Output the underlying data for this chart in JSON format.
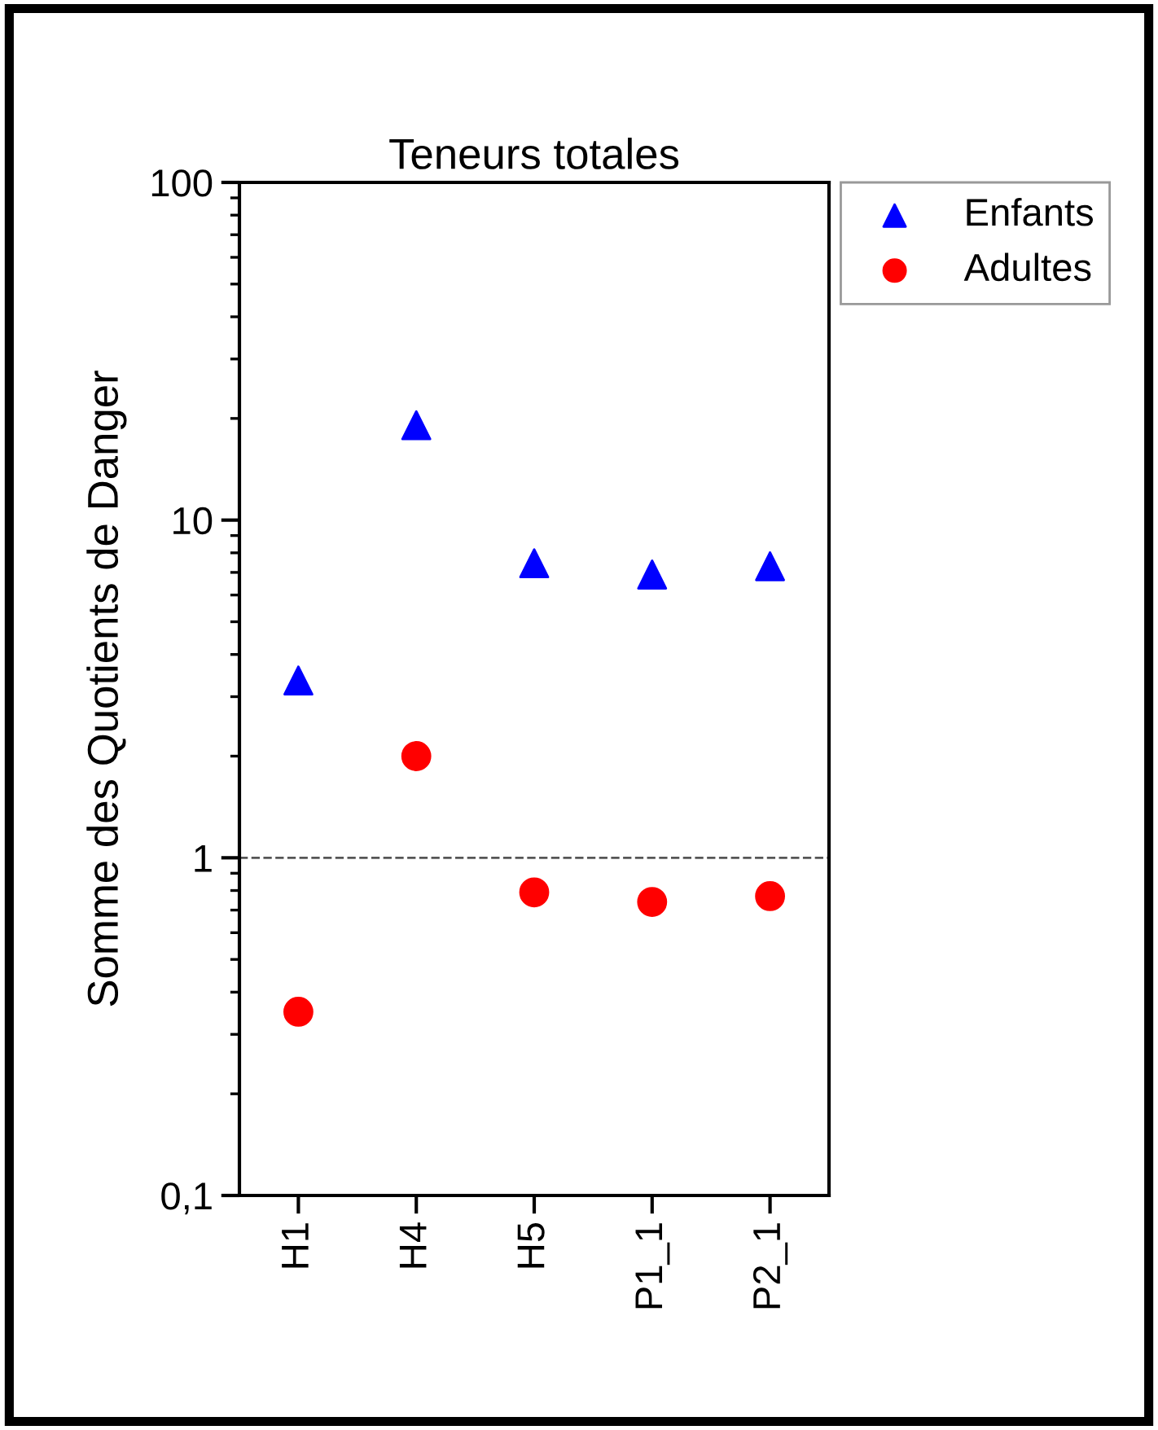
{
  "chart_data": {
    "type": "scatter",
    "title": "Teneurs totales",
    "ylabel": "Somme des Quotients de Danger",
    "categories": [
      "H1",
      "H4",
      "H5",
      "P1_1",
      "P2_1"
    ],
    "series": [
      {
        "name": "Enfants",
        "color": "#0000ff",
        "marker": "triangle",
        "values": [
          3.35,
          19.1,
          7.45,
          6.9,
          7.3
        ]
      },
      {
        "name": "Adultes",
        "color": "#ff0000",
        "marker": "circle",
        "values": [
          0.35,
          2.0,
          0.79,
          0.74,
          0.77
        ]
      }
    ],
    "log": "y",
    "ylim": [
      0.1,
      100
    ],
    "yticks": [
      {
        "value": 0.1,
        "label": "0,1"
      },
      1,
      10,
      100
    ],
    "ref_lines": [
      {
        "axis": "y",
        "value": 1,
        "color": "#555555",
        "line_style": "dashed"
      }
    ],
    "grid": false,
    "legend": "top right"
  }
}
